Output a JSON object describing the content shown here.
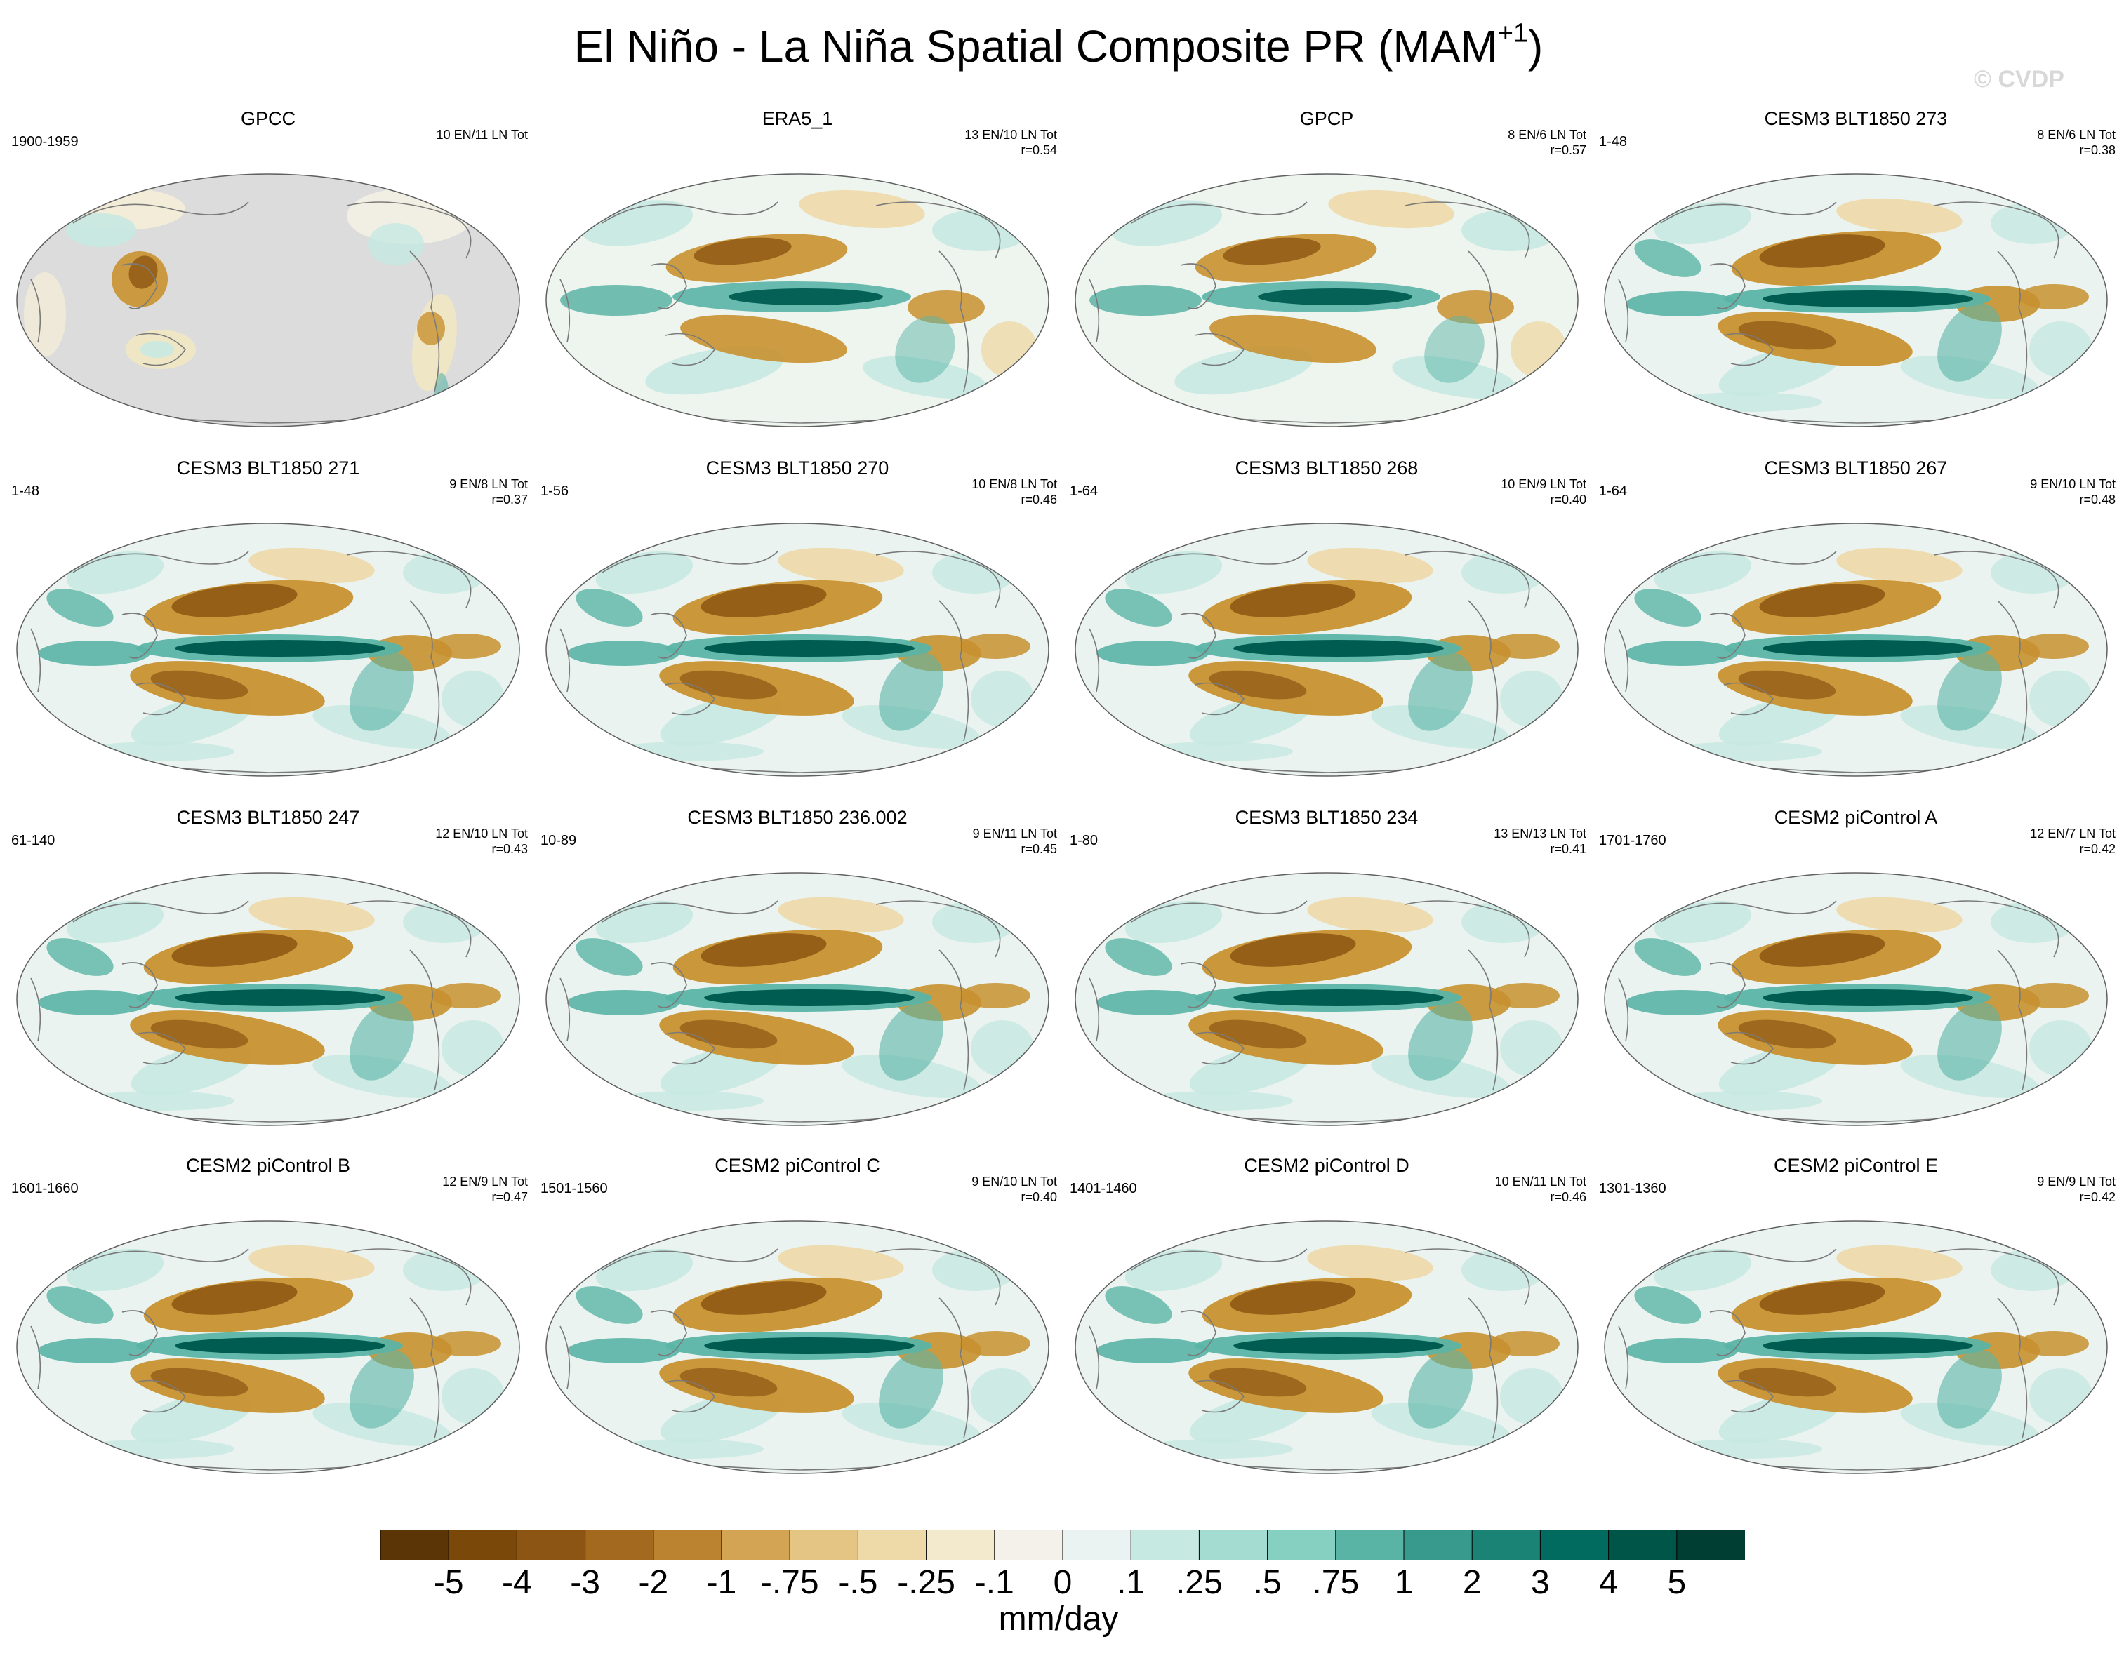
{
  "title": {
    "main": "El Niño - La Niña Spatial Composite PR (MAM",
    "sup": "+1",
    "close": ")"
  },
  "watermark": "© CVDP",
  "colors": {
    "land": "#dcdcdc",
    "outline": "#606060",
    "coast": "#7a7a7a",
    "dry_strong": "#8c5513",
    "dry_mid": "#c8912f",
    "dry_weak": "#eed9a8",
    "neutral": "#f4f1ea",
    "wet_weak": "#c6e9e1",
    "wet_mid": "#5ab4a6",
    "wet_strong": "#005c50"
  },
  "panels": [
    {
      "title": "GPCC",
      "period": "1900-1959",
      "counts": "10 EN/11 LN Tot",
      "r": "",
      "style": "obs_land"
    },
    {
      "title": "ERA5_1",
      "period": "",
      "counts": "13 EN/10 LN Tot",
      "r": "r=0.54",
      "style": "reanalysis"
    },
    {
      "title": "GPCP",
      "period": "",
      "counts": "8 EN/6 LN Tot",
      "r": "r=0.57",
      "style": "reanalysis"
    },
    {
      "title": "CESM3 BLT1850 273",
      "period": "1-48",
      "counts": "8 EN/6 LN Tot",
      "r": "r=0.38",
      "style": "model"
    },
    {
      "title": "CESM3 BLT1850 271",
      "period": "1-48",
      "counts": "9 EN/8 LN Tot",
      "r": "r=0.37",
      "style": "model"
    },
    {
      "title": "CESM3 BLT1850 270",
      "period": "1-56",
      "counts": "10 EN/8 LN Tot",
      "r": "r=0.46",
      "style": "model"
    },
    {
      "title": "CESM3 BLT1850 268",
      "period": "1-64",
      "counts": "10 EN/9 LN Tot",
      "r": "r=0.40",
      "style": "model"
    },
    {
      "title": "CESM3 BLT1850 267",
      "period": "1-64",
      "counts": "9 EN/10 LN Tot",
      "r": "r=0.48",
      "style": "model"
    },
    {
      "title": "CESM3 BLT1850 247",
      "period": "61-140",
      "counts": "12 EN/10 LN Tot",
      "r": "r=0.43",
      "style": "model"
    },
    {
      "title": "CESM3 BLT1850 236.002",
      "period": "10-89",
      "counts": "9 EN/11 LN Tot",
      "r": "r=0.45",
      "style": "model"
    },
    {
      "title": "CESM3 BLT1850 234",
      "period": "1-80",
      "counts": "13 EN/13 LN Tot",
      "r": "r=0.41",
      "style": "model"
    },
    {
      "title": "CESM2 piControl A",
      "period": "1701-1760",
      "counts": "12 EN/7 LN Tot",
      "r": "r=0.42",
      "style": "model"
    },
    {
      "title": "CESM2 piControl B",
      "period": "1601-1660",
      "counts": "12 EN/9 LN Tot",
      "r": "r=0.47",
      "style": "model"
    },
    {
      "title": "CESM2 piControl C",
      "period": "1501-1560",
      "counts": "9 EN/10 LN Tot",
      "r": "r=0.40",
      "style": "model"
    },
    {
      "title": "CESM2 piControl D",
      "period": "1401-1460",
      "counts": "10 EN/11 LN Tot",
      "r": "r=0.46",
      "style": "model"
    },
    {
      "title": "CESM2 piControl E",
      "period": "1301-1360",
      "counts": "9 EN/9 LN Tot",
      "r": "r=0.42",
      "style": "model"
    }
  ],
  "colorbar": {
    "colors": [
      "#5c3506",
      "#7a4809",
      "#8c5513",
      "#a3691f",
      "#bb8230",
      "#d2a453",
      "#e4c584",
      "#eedaa8",
      "#f3e9cc",
      "#f4f1ea",
      "#eaf3f1",
      "#c6e9e1",
      "#a5dcd2",
      "#86d0c2",
      "#5ab4a6",
      "#379a8c",
      "#1b8276",
      "#006b5e",
      "#005549",
      "#003d33"
    ],
    "labels": [
      "-5",
      "-4",
      "-3",
      "-2",
      "-1",
      "-.75",
      "-.5",
      "-.25",
      "-.1",
      "0",
      ".1",
      ".25",
      ".5",
      ".75",
      "1",
      "2",
      "3",
      "4",
      "5"
    ],
    "units": "mm/day"
  }
}
